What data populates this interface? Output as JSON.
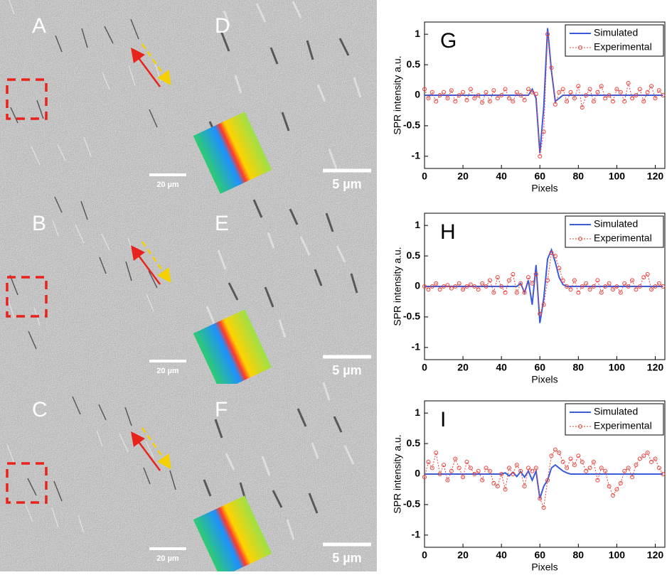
{
  "images": [
    {
      "label": "A",
      "scale": "20 µm"
    },
    {
      "label": "D",
      "scale": "5 µm"
    },
    {
      "label": "B",
      "scale": "20 µm"
    },
    {
      "label": "E",
      "scale": "5 µm"
    },
    {
      "label": "C",
      "scale": "20 µm"
    },
    {
      "label": "F",
      "scale": "5 µm"
    }
  ],
  "chart_data": [
    {
      "type": "line",
      "label": "G",
      "xlabel": "Pixels",
      "ylabel": "SPR intensity a.u.",
      "xlim": [
        0,
        125
      ],
      "ylim": [
        -1.2,
        1.2
      ],
      "xticks": [
        0,
        20,
        40,
        60,
        80,
        100,
        120
      ],
      "yticks": [
        -1,
        -0.5,
        0,
        0.5,
        1
      ],
      "legend": "top-right",
      "x": [
        0,
        2,
        4,
        6,
        8,
        10,
        12,
        14,
        16,
        18,
        20,
        22,
        24,
        26,
        28,
        30,
        32,
        34,
        36,
        38,
        40,
        42,
        44,
        46,
        48,
        50,
        52,
        54,
        56,
        58,
        60,
        62,
        64,
        66,
        68,
        70,
        72,
        74,
        76,
        78,
        80,
        82,
        84,
        86,
        88,
        90,
        92,
        94,
        96,
        98,
        100,
        102,
        104,
        106,
        108,
        110,
        112,
        114,
        116,
        118,
        120,
        122,
        124
      ],
      "series": [
        {
          "name": "Simulated",
          "color": "#3b5bdb",
          "values": [
            0,
            0,
            0,
            0,
            0,
            0,
            0,
            0,
            0,
            0,
            0,
            0,
            0,
            0,
            0,
            0,
            0,
            0,
            0,
            0,
            0,
            0,
            0,
            0,
            0,
            0,
            0,
            0,
            0.1,
            -0.05,
            -0.95,
            -0.2,
            1.1,
            0.4,
            -0.1,
            -0.05,
            0,
            0,
            0,
            0,
            0,
            0,
            0,
            0,
            0,
            0,
            0,
            0,
            0,
            0,
            0,
            0,
            0,
            0,
            0,
            0,
            0,
            0,
            0,
            0,
            0,
            0,
            0
          ]
        },
        {
          "name": "Experimental",
          "color": "#e8413b",
          "values": [
            0.1,
            -0.05,
            0.05,
            -0.1,
            0,
            0.05,
            -0.05,
            0.08,
            -0.1,
            0,
            0.05,
            -0.08,
            0.1,
            -0.05,
            0,
            -0.12,
            0.05,
            -0.1,
            0.08,
            -0.05,
            0,
            0.1,
            -0.05,
            -0.1,
            0.05,
            0,
            -0.08,
            0.1,
            0.05,
            0.02,
            -1.0,
            -0.6,
            1.0,
            0.45,
            -0.15,
            0.05,
            0.1,
            -0.1,
            0.05,
            -0.05,
            0.15,
            -0.2,
            0,
            0.1,
            -0.1,
            0.05,
            0.15,
            -0.05,
            0,
            -0.1,
            0.1,
            0.05,
            -0.1,
            0.2,
            -0.05,
            0,
            0.1,
            -0.1,
            0.05,
            0.15,
            -0.05,
            0.08,
            0
          ]
        }
      ]
    },
    {
      "type": "line",
      "label": "H",
      "xlabel": "Pixels",
      "ylabel": "SPR intensity a.u.",
      "xlim": [
        0,
        125
      ],
      "ylim": [
        -1.2,
        1.2
      ],
      "xticks": [
        0,
        20,
        40,
        60,
        80,
        100,
        120
      ],
      "yticks": [
        -1,
        -0.5,
        0,
        0.5,
        1
      ],
      "legend": "top-right",
      "x": [
        0,
        2,
        4,
        6,
        8,
        10,
        12,
        14,
        16,
        18,
        20,
        22,
        24,
        26,
        28,
        30,
        32,
        34,
        36,
        38,
        40,
        42,
        44,
        46,
        48,
        50,
        52,
        54,
        56,
        58,
        60,
        62,
        64,
        66,
        68,
        70,
        72,
        74,
        76,
        78,
        80,
        82,
        84,
        86,
        88,
        90,
        92,
        94,
        96,
        98,
        100,
        102,
        104,
        106,
        108,
        110,
        112,
        114,
        116,
        118,
        120,
        122,
        124
      ],
      "series": [
        {
          "name": "Simulated",
          "color": "#3b5bdb",
          "values": [
            0,
            0,
            0,
            0,
            0,
            0,
            0,
            0,
            0,
            0,
            0,
            0,
            0,
            0,
            0,
            0,
            0,
            0,
            0,
            0,
            0,
            0,
            0,
            0,
            0,
            0.05,
            -0.1,
            0.1,
            -0.3,
            0.35,
            -0.6,
            -0.2,
            0.45,
            0.6,
            0.4,
            0.15,
            0.03,
            0,
            0,
            0,
            0,
            0,
            0,
            0,
            0,
            0,
            0,
            0,
            0,
            0,
            0,
            0,
            0,
            0,
            0,
            0,
            0,
            0,
            0,
            0,
            0,
            0,
            0
          ]
        },
        {
          "name": "Experimental",
          "color": "#e8413b",
          "values": [
            0,
            -0.05,
            0,
            0.05,
            -0.05,
            0,
            0.02,
            -0.03,
            0,
            0.05,
            -0.05,
            0,
            0.03,
            0,
            -0.05,
            0.05,
            0,
            0.1,
            -0.1,
            0.15,
            0,
            -0.1,
            0.1,
            0.2,
            -0.1,
            0.05,
            -0.1,
            0.15,
            0.05,
            0.2,
            -0.45,
            -0.3,
            0.1,
            0.55,
            0.5,
            0.3,
            0.1,
            0,
            -0.05,
            0.1,
            -0.1,
            0,
            0.05,
            -0.05,
            0,
            0.1,
            -0.1,
            0,
            0.05,
            -0.05,
            0,
            -0.1,
            0.05,
            0,
            0.1,
            -0.05,
            0,
            0.15,
            0.2,
            -0.05,
            0,
            0.05,
            0
          ]
        }
      ]
    },
    {
      "type": "line",
      "label": "I",
      "xlabel": "Pixels",
      "ylabel": "SPR intensity a.u.",
      "xlim": [
        0,
        125
      ],
      "ylim": [
        -1.2,
        1.2
      ],
      "xticks": [
        0,
        20,
        40,
        60,
        80,
        100,
        120
      ],
      "yticks": [
        -1,
        -0.5,
        0,
        0.5,
        1
      ],
      "legend": "top-right",
      "x": [
        0,
        2,
        4,
        6,
        8,
        10,
        12,
        14,
        16,
        18,
        20,
        22,
        24,
        26,
        28,
        30,
        32,
        34,
        36,
        38,
        40,
        42,
        44,
        46,
        48,
        50,
        52,
        54,
        56,
        58,
        60,
        62,
        64,
        66,
        68,
        70,
        72,
        74,
        76,
        78,
        80,
        82,
        84,
        86,
        88,
        90,
        92,
        94,
        96,
        98,
        100,
        102,
        104,
        106,
        108,
        110,
        112,
        114,
        116,
        118,
        120,
        122,
        124
      ],
      "series": [
        {
          "name": "Simulated",
          "color": "#3b5bdb",
          "values": [
            0,
            0,
            0,
            0,
            0,
            0,
            0,
            0,
            0,
            0,
            0,
            0,
            0,
            0,
            0,
            0,
            0,
            0,
            0,
            0,
            0,
            0.02,
            -0.03,
            0.03,
            -0.04,
            0.04,
            -0.05,
            0.05,
            -0.1,
            0.05,
            -0.4,
            -0.2,
            -0.1,
            0.1,
            0.15,
            0.1,
            0.05,
            0.02,
            0,
            0,
            0,
            0,
            0,
            0,
            0,
            0,
            0,
            0,
            0,
            0,
            0,
            0,
            0,
            0,
            0,
            0,
            0,
            0,
            0,
            0,
            0,
            0,
            0
          ]
        },
        {
          "name": "Experimental",
          "color": "#e8413b",
          "values": [
            -0.05,
            0.2,
            0.1,
            0.35,
            0,
            0.15,
            -0.1,
            0.05,
            0.25,
            0.1,
            -0.05,
            0.2,
            0.1,
            0,
            0.05,
            -0.1,
            0.1,
            0.05,
            -0.15,
            -0.2,
            0,
            -0.25,
            0.1,
            0,
            0.15,
            0.05,
            -0.2,
            0.1,
            0.05,
            0.1,
            -0.4,
            -0.55,
            -0.1,
            0.3,
            0.4,
            0.35,
            0.2,
            0.1,
            0.25,
            0.15,
            0.3,
            0.2,
            0.05,
            0.1,
            0.2,
            -0.1,
            0.1,
            0.05,
            -0.2,
            -0.35,
            -0.25,
            -0.15,
            0.05,
            0.1,
            -0.05,
            0.15,
            0.25,
            0.3,
            0.35,
            0.2,
            0.25,
            0.1,
            0
          ]
        }
      ]
    }
  ]
}
